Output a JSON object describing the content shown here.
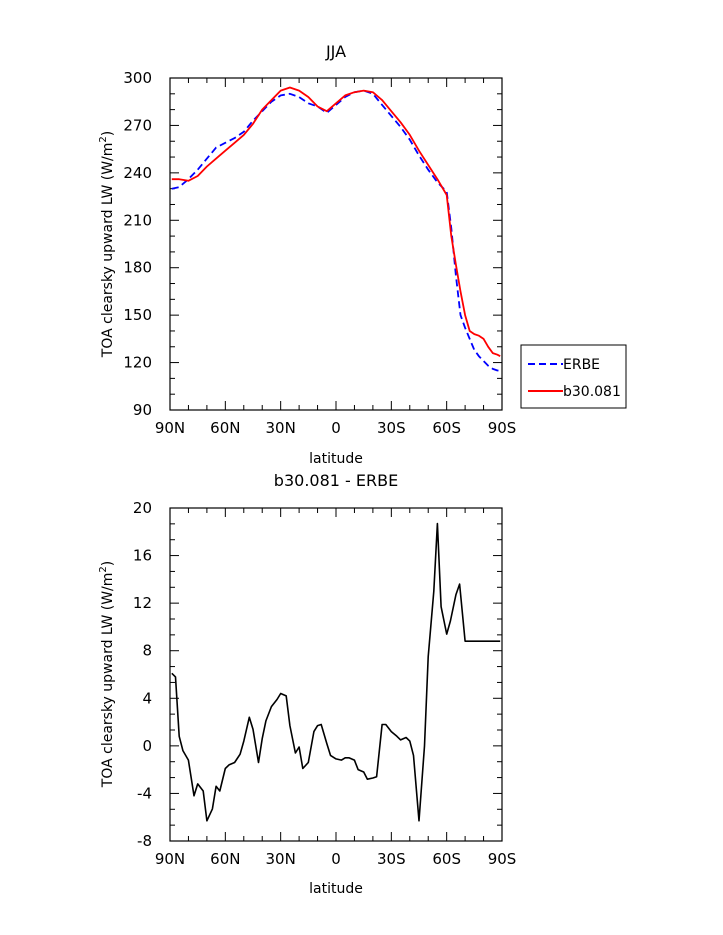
{
  "charts": {
    "top": {
      "title": "JJA",
      "xlabel": "latitude",
      "ylabel_main": "TOA clearsky upward LW (W/m",
      "ylabel_sup": "2",
      "ylabel_end": ")"
    },
    "bottom": {
      "title": "b30.081 - ERBE",
      "xlabel": "latitude",
      "ylabel_main": "TOA clearsky upward LW (W/m",
      "ylabel_sup": "2",
      "ylabel_end": ")"
    }
  },
  "chart_data": [
    {
      "type": "line",
      "title": "JJA",
      "xlabel": "latitude",
      "ylabel": "TOA clearsky upward LW (W/m2)",
      "xlim": [
        90,
        -90
      ],
      "ylim": [
        90,
        300
      ],
      "x_ticks": [
        90,
        60,
        30,
        0,
        -30,
        -60,
        -90
      ],
      "x_tick_labels": [
        "90N",
        "60N",
        "30N",
        "0",
        "30S",
        "60S",
        "90S"
      ],
      "y_ticks": [
        90,
        120,
        150,
        180,
        210,
        240,
        270,
        300
      ],
      "y_tick_labels": [
        "90",
        "120",
        "150",
        "180",
        "210",
        "240",
        "270",
        "300"
      ],
      "legend_position": "right-bottom outside",
      "series": [
        {
          "name": "ERBE",
          "color": "#0000ff",
          "dash": "dashed",
          "x": [
            89,
            85,
            80,
            75,
            70,
            65,
            60,
            55,
            50,
            45,
            40,
            35,
            30,
            25,
            20,
            15,
            10,
            5,
            0,
            -5,
            -10,
            -15,
            -20,
            -25,
            -30,
            -35,
            -40,
            -45,
            -50,
            -55,
            -60,
            -62.5,
            -65,
            -67.5,
            -70,
            -72.5,
            -75,
            -77.5,
            -80,
            -82.5,
            -85,
            -87.5,
            -89
          ],
          "y": [
            230,
            231,
            236,
            242,
            249,
            256,
            259,
            262,
            266,
            273,
            279,
            285,
            289,
            290,
            288,
            284,
            282,
            278,
            283,
            288,
            291,
            292,
            290,
            283,
            276,
            269,
            261,
            251,
            242,
            234,
            228,
            205,
            175,
            150,
            142,
            135,
            128,
            124,
            121,
            118,
            116,
            115,
            115
          ]
        },
        {
          "name": "b30.081",
          "color": "#ff0000",
          "dash": "solid",
          "x": [
            89,
            85,
            80,
            75,
            70,
            65,
            60,
            55,
            50,
            45,
            40,
            35,
            30,
            25,
            20,
            15,
            10,
            5,
            0,
            -5,
            -10,
            -15,
            -20,
            -25,
            -30,
            -35,
            -40,
            -45,
            -50,
            -55,
            -60,
            -62.5,
            -65,
            -67.5,
            -70,
            -72.5,
            -75,
            -77.5,
            -80,
            -82.5,
            -85,
            -87.5,
            -89
          ],
          "y": [
            236,
            236,
            235,
            238,
            244,
            249,
            254,
            259,
            264,
            271,
            280,
            286,
            292,
            294,
            292,
            288,
            282,
            279,
            284,
            289,
            291,
            292,
            291,
            286,
            279,
            272,
            264,
            254,
            245,
            236,
            226,
            200,
            182,
            165,
            150,
            140,
            138,
            137,
            135,
            130,
            126,
            125,
            124
          ]
        }
      ]
    },
    {
      "type": "line",
      "title": "b30.081 - ERBE",
      "xlabel": "latitude",
      "ylabel": "TOA clearsky upward LW (W/m2)",
      "xlim": [
        90,
        -90
      ],
      "ylim": [
        -8,
        20
      ],
      "x_ticks": [
        90,
        60,
        30,
        0,
        -30,
        -60,
        -90
      ],
      "x_tick_labels": [
        "90N",
        "60N",
        "30N",
        "0",
        "30S",
        "60S",
        "90S"
      ],
      "y_ticks": [
        -8,
        -4,
        0,
        4,
        8,
        12,
        16,
        20
      ],
      "y_tick_labels": [
        "-8",
        "-4",
        "0",
        "4",
        "8",
        "12",
        "16",
        "20"
      ],
      "series": [
        {
          "color": "#000000",
          "dash": "solid",
          "x": [
            89,
            87,
            85,
            83,
            80,
            77,
            75,
            72,
            70,
            67,
            65,
            63,
            60,
            58,
            55,
            52,
            50,
            47,
            45,
            42,
            40,
            38,
            35,
            32,
            30,
            27,
            25,
            22,
            20,
            18,
            15,
            12,
            10,
            8,
            5,
            3,
            0,
            -3,
            -5,
            -7,
            -10,
            -12,
            -15,
            -17,
            -20,
            -22,
            -25,
            -27,
            -30,
            -33,
            -35,
            -38,
            -40,
            -42,
            -45,
            -48,
            -50,
            -53,
            -55,
            -57,
            -60,
            -62,
            -65,
            -67,
            -70,
            -72,
            -75,
            -77,
            -80,
            -82,
            -85,
            -87,
            -89
          ],
          "y": [
            6.1,
            5.8,
            0.8,
            -0.4,
            -1.2,
            -4.2,
            -3.2,
            -3.8,
            -6.3,
            -5.3,
            -3.4,
            -3.8,
            -1.9,
            -1.6,
            -1.4,
            -0.7,
            0.4,
            2.4,
            1.4,
            -1.4,
            0.6,
            2.1,
            3.3,
            3.9,
            4.4,
            4.2,
            1.7,
            -0.6,
            -0.1,
            -1.9,
            -1.4,
            1.2,
            1.7,
            1.8,
            0.2,
            -0.8,
            -1.1,
            -1.2,
            -1.0,
            -1.0,
            -1.2,
            -2.0,
            -2.2,
            -2.8,
            -2.7,
            -2.6,
            1.8,
            1.8,
            1.2,
            0.8,
            0.5,
            0.7,
            0.4,
            -0.8,
            -6.3,
            0.0,
            7.5,
            13.0,
            18.7,
            11.7,
            9.4,
            10.5,
            12.7,
            13.6,
            8.8,
            8.8,
            8.8,
            8.8,
            8.8,
            8.8,
            8.8,
            8.8,
            8.8
          ]
        }
      ]
    }
  ]
}
